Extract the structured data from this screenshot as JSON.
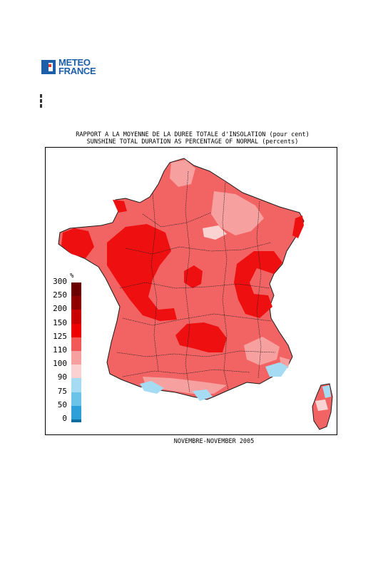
{
  "logo": {
    "line1": "METEO",
    "line2": "FRANCE",
    "brand_color": "#1c5fa8"
  },
  "title": {
    "line1": "RAPPORT A LA MOYENNE DE LA DUREE TOTALE d'INSOLATION (pour cent)",
    "line2": "SUNSHINE TOTAL DURATION AS PERCENTAGE OF NORMAL (percents)"
  },
  "period": "NOVEMBRE-NOVEMBER 2005",
  "legend": {
    "unit": "%",
    "classes": [
      {
        "label": "300",
        "color": "#6b0000"
      },
      {
        "label": "250",
        "color": "#8e0000"
      },
      {
        "label": "200",
        "color": "#c80000"
      },
      {
        "label": "150",
        "color": "#ee0000"
      },
      {
        "label": "125",
        "color": "#f25a5a"
      },
      {
        "label": "110",
        "color": "#f7a0a0"
      },
      {
        "label": "100",
        "color": "#fbd2d2"
      },
      {
        "label": "90",
        "color": "#a5dcf3"
      },
      {
        "label": "75",
        "color": "#6cc3ea"
      },
      {
        "label": "50",
        "color": "#2f9fd8"
      },
      {
        "label": "0",
        "color": "#0b6d9e"
      }
    ]
  },
  "map": {
    "dominant_class": "125",
    "region_colors": {
      "main": "#f26464",
      "strong": "#ee1010",
      "light": "#f7a0a0",
      "pale": "#fbd2d2",
      "cool": "#a5dcf3",
      "border_line": "#1a1a1a"
    }
  }
}
